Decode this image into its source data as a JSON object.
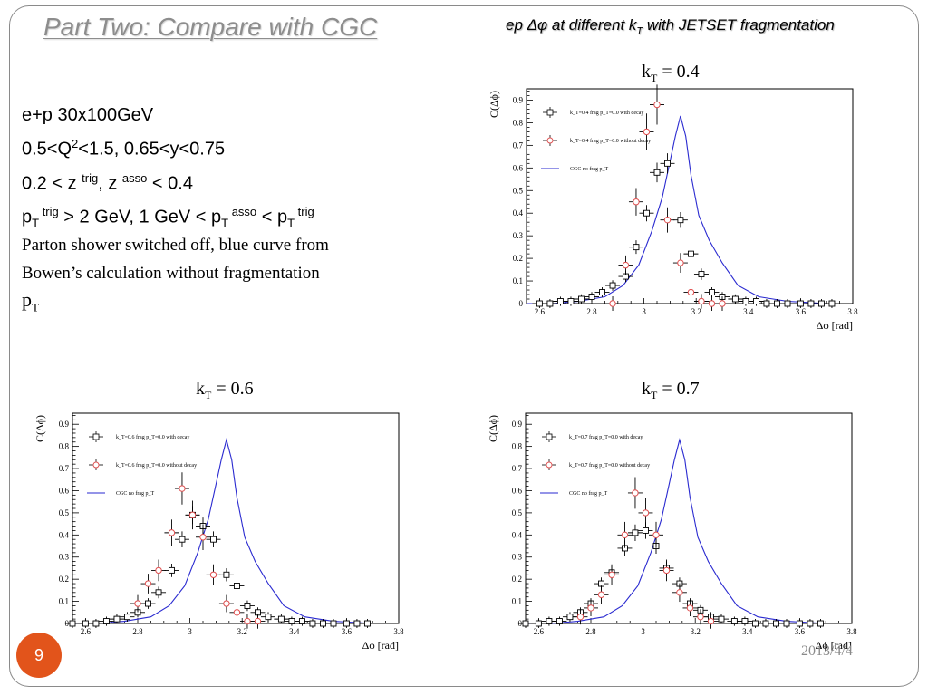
{
  "slide": {
    "title": "Part Two: Compare with CGC",
    "subtitle_pre": "ep ",
    "subtitle_mid": " at different k",
    "subtitle_sub": "T",
    "subtitle_post": " with JETSET fragmentation",
    "params": {
      "line1": "e+p 30x100GeV",
      "line2_a": "0.5<Q",
      "line2_sup": "2",
      "line2_b": "<1.5,  0.65<y<0.75",
      "line3_a": "0.2 < z ",
      "line3_sup1": "trig",
      "line3_b": ", z ",
      "line3_sup2": "asso",
      "line3_c": " < 0.4",
      "line4_p1": "p",
      "line4_sub1": "T",
      "line4_sup1": " trig",
      "line4_b": " > 2 GeV, 1 GeV < p",
      "line4_sub2": "T",
      "line4_sup2": " asso",
      "line4_c": " < p",
      "line4_sub3": "T",
      "line4_sup3": " trig"
    },
    "note_line1": "Parton shower switched off, blue curve from",
    "note_line2": "Bowen’s calculation without fragmentation",
    "note_pt": "p",
    "note_pt_sub": "T",
    "page_number": "9",
    "date": "2013/4/4"
  },
  "colors": {
    "title": "#8d8d8d",
    "accent": "#e2541b",
    "series_decay": "#000000",
    "series_nodecay": "#e05050",
    "cgc_curve": "#2a2ad0"
  },
  "chart_data": [
    {
      "type": "scatter",
      "title_k": "k",
      "title_sub": "T",
      "title_val": " = 0.4",
      "xlabel": "Δϕ [rad]",
      "ylabel": "C(Δϕ)",
      "xlim": [
        2.55,
        3.8
      ],
      "ylim": [
        0,
        0.95
      ],
      "xticks": [
        2.6,
        2.8,
        3,
        3.2,
        3.4,
        3.6,
        3.8
      ],
      "yticks": [
        0,
        0.1,
        0.2,
        0.3,
        0.4,
        0.5,
        0.6,
        0.7,
        0.8,
        0.9
      ],
      "grid": false,
      "legend_position": "top-left",
      "series": [
        {
          "name": "k_T=0.4 frag p_T=0.0 with decay",
          "marker": "square",
          "x": [
            2.6,
            2.64,
            2.68,
            2.72,
            2.76,
            2.8,
            2.84,
            2.88,
            2.93,
            2.97,
            3.01,
            3.05,
            3.09,
            3.14,
            3.18,
            3.22,
            3.26,
            3.3,
            3.35,
            3.39,
            3.43,
            3.47,
            3.51,
            3.55,
            3.6,
            3.64,
            3.68,
            3.72
          ],
          "y": [
            0.0,
            0.0,
            0.01,
            0.01,
            0.02,
            0.03,
            0.05,
            0.08,
            0.12,
            0.25,
            0.4,
            0.58,
            0.62,
            0.37,
            0.22,
            0.13,
            0.05,
            0.03,
            0.02,
            0.01,
            0.01,
            0.0,
            0.0,
            0.0,
            0.0,
            0.0,
            0.0,
            0.0
          ]
        },
        {
          "name": "k_T=0.4 frag p_T=0.0 without decay",
          "marker": "circle",
          "x": [
            2.88,
            2.93,
            2.97,
            3.01,
            3.05,
            3.09,
            3.14,
            3.18,
            3.22,
            3.26,
            3.3
          ],
          "y": [
            0.0,
            0.17,
            0.45,
            0.76,
            0.88,
            0.37,
            0.18,
            0.05,
            0.01,
            0.0,
            0.0
          ]
        },
        {
          "name": "CGC no frag p_T",
          "marker": "line",
          "x": [
            2.55,
            2.65,
            2.75,
            2.85,
            2.92,
            2.98,
            3.03,
            3.07,
            3.1,
            3.12,
            3.14,
            3.16,
            3.18,
            3.21,
            3.25,
            3.3,
            3.36,
            3.44,
            3.55,
            3.7
          ],
          "y": [
            0.0,
            0.0,
            0.01,
            0.03,
            0.08,
            0.17,
            0.32,
            0.47,
            0.63,
            0.74,
            0.83,
            0.74,
            0.57,
            0.39,
            0.28,
            0.18,
            0.08,
            0.03,
            0.01,
            0.0
          ]
        }
      ]
    },
    {
      "type": "scatter",
      "title_k": "k",
      "title_sub": "T",
      "title_val": " = 0.6",
      "xlabel": "Δϕ [rad]",
      "ylabel": "C(Δϕ)",
      "xlim": [
        2.55,
        3.8
      ],
      "ylim": [
        0,
        0.95
      ],
      "xticks": [
        2.6,
        2.8,
        3,
        3.2,
        3.4,
        3.6,
        3.8
      ],
      "yticks": [
        0,
        0.1,
        0.2,
        0.3,
        0.4,
        0.5,
        0.6,
        0.7,
        0.8,
        0.9
      ],
      "grid": false,
      "legend_position": "top-left",
      "series": [
        {
          "name": "k_T=0.6 frag p_T=0.0 with decay",
          "marker": "square",
          "x": [
            2.55,
            2.6,
            2.64,
            2.68,
            2.72,
            2.76,
            2.8,
            2.84,
            2.88,
            2.93,
            2.97,
            3.01,
            3.05,
            3.09,
            3.14,
            3.18,
            3.22,
            3.26,
            3.3,
            3.35,
            3.39,
            3.43,
            3.47,
            3.51,
            3.55,
            3.6,
            3.64,
            3.68
          ],
          "y": [
            0.0,
            0.0,
            0.0,
            0.01,
            0.02,
            0.03,
            0.05,
            0.09,
            0.14,
            0.24,
            0.38,
            0.49,
            0.44,
            0.38,
            0.22,
            0.17,
            0.08,
            0.05,
            0.03,
            0.02,
            0.01,
            0.01,
            0.0,
            0.0,
            0.0,
            0.0,
            0.0,
            0.0
          ]
        },
        {
          "name": "k_T=0.6 frag p_T=0.0 without decay",
          "marker": "circle",
          "x": [
            2.8,
            2.84,
            2.88,
            2.93,
            2.97,
            3.01,
            3.05,
            3.09,
            3.14,
            3.18,
            3.22,
            3.26
          ],
          "y": [
            0.09,
            0.18,
            0.24,
            0.41,
            0.61,
            0.49,
            0.39,
            0.22,
            0.09,
            0.05,
            0.01,
            0.01
          ]
        },
        {
          "name": "CGC no frag p_T",
          "marker": "line",
          "x": [
            2.55,
            2.65,
            2.75,
            2.85,
            2.92,
            2.98,
            3.03,
            3.07,
            3.1,
            3.12,
            3.14,
            3.16,
            3.18,
            3.21,
            3.25,
            3.3,
            3.36,
            3.44,
            3.55,
            3.7
          ],
          "y": [
            0.0,
            0.0,
            0.01,
            0.03,
            0.08,
            0.17,
            0.32,
            0.47,
            0.63,
            0.74,
            0.83,
            0.74,
            0.57,
            0.39,
            0.28,
            0.18,
            0.08,
            0.03,
            0.01,
            0.0
          ]
        }
      ]
    },
    {
      "type": "scatter",
      "title_k": "k",
      "title_sub": "T",
      "title_val": " = 0.7",
      "xlabel": "Δϕ [rad]",
      "ylabel": "C(Δϕ)",
      "xlim": [
        2.55,
        3.8
      ],
      "ylim": [
        0,
        0.95
      ],
      "xticks": [
        2.6,
        2.8,
        3,
        3.2,
        3.4,
        3.6,
        3.8
      ],
      "yticks": [
        0,
        0.1,
        0.2,
        0.3,
        0.4,
        0.5,
        0.6,
        0.7,
        0.8,
        0.9
      ],
      "grid": false,
      "legend_position": "top-left",
      "series": [
        {
          "name": "k_T=0.7 frag p_T=0.0 with decay",
          "marker": "square",
          "x": [
            2.55,
            2.6,
            2.64,
            2.68,
            2.72,
            2.76,
            2.8,
            2.84,
            2.88,
            2.93,
            2.97,
            3.01,
            3.05,
            3.09,
            3.14,
            3.18,
            3.22,
            3.26,
            3.3,
            3.35,
            3.39,
            3.43,
            3.47,
            3.51,
            3.55,
            3.6,
            3.64,
            3.68
          ],
          "y": [
            0.0,
            0.0,
            0.01,
            0.01,
            0.03,
            0.05,
            0.09,
            0.18,
            0.23,
            0.34,
            0.41,
            0.42,
            0.35,
            0.25,
            0.18,
            0.09,
            0.06,
            0.03,
            0.02,
            0.01,
            0.01,
            0.0,
            0.0,
            0.0,
            0.0,
            0.0,
            0.0,
            0.0
          ]
        },
        {
          "name": "k_T=0.7 frag p_T=0.0 without decay",
          "marker": "circle",
          "x": [
            2.76,
            2.8,
            2.84,
            2.88,
            2.93,
            2.97,
            3.01,
            3.05,
            3.09,
            3.14,
            3.18,
            3.22,
            3.26
          ],
          "y": [
            0.03,
            0.07,
            0.13,
            0.22,
            0.4,
            0.59,
            0.5,
            0.4,
            0.24,
            0.14,
            0.07,
            0.03,
            0.01
          ]
        },
        {
          "name": "CGC no frag p_T",
          "marker": "line",
          "x": [
            2.55,
            2.65,
            2.75,
            2.85,
            2.92,
            2.98,
            3.03,
            3.07,
            3.1,
            3.12,
            3.14,
            3.16,
            3.18,
            3.21,
            3.25,
            3.3,
            3.36,
            3.44,
            3.55,
            3.7
          ],
          "y": [
            0.0,
            0.0,
            0.01,
            0.03,
            0.08,
            0.17,
            0.32,
            0.47,
            0.63,
            0.74,
            0.83,
            0.74,
            0.57,
            0.39,
            0.28,
            0.18,
            0.08,
            0.03,
            0.01,
            0.0
          ]
        }
      ]
    }
  ]
}
